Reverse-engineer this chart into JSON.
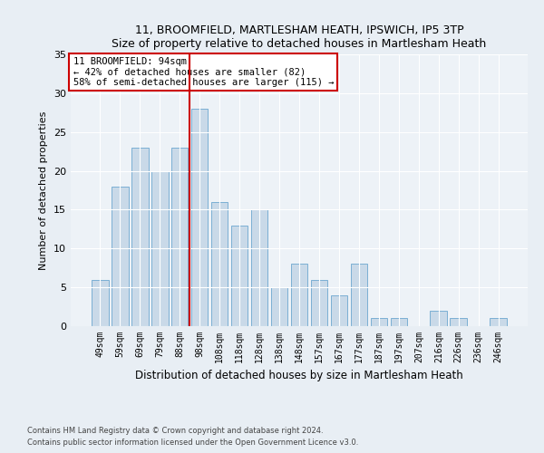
{
  "title1": "11, BROOMFIELD, MARTLESHAM HEATH, IPSWICH, IP5 3TP",
  "title2": "Size of property relative to detached houses in Martlesham Heath",
  "xlabel": "Distribution of detached houses by size in Martlesham Heath",
  "ylabel": "Number of detached properties",
  "categories": [
    "49sqm",
    "59sqm",
    "69sqm",
    "79sqm",
    "88sqm",
    "98sqm",
    "108sqm",
    "118sqm",
    "128sqm",
    "138sqm",
    "148sqm",
    "157sqm",
    "167sqm",
    "177sqm",
    "187sqm",
    "197sqm",
    "207sqm",
    "216sqm",
    "226sqm",
    "236sqm",
    "246sqm"
  ],
  "values": [
    6,
    18,
    23,
    20,
    23,
    28,
    16,
    13,
    15,
    5,
    8,
    6,
    4,
    8,
    1,
    1,
    0,
    2,
    1,
    0,
    1
  ],
  "bar_color": "#c9d9e8",
  "bar_edge_color": "#7bafd4",
  "marker_color": "#cc0000",
  "ylim": [
    0,
    35
  ],
  "yticks": [
    0,
    5,
    10,
    15,
    20,
    25,
    30,
    35
  ],
  "annotation_text": "11 BROOMFIELD: 94sqm\n← 42% of detached houses are smaller (82)\n58% of semi-detached houses are larger (115) →",
  "annotation_box_color": "#ffffff",
  "annotation_box_edge": "#cc0000",
  "footer1": "Contains HM Land Registry data © Crown copyright and database right 2024.",
  "footer2": "Contains public sector information licensed under the Open Government Licence v3.0.",
  "bg_color": "#e8eef4",
  "plot_bg_color": "#edf2f7"
}
